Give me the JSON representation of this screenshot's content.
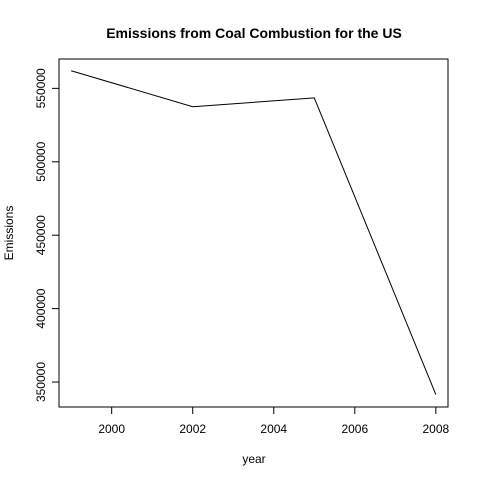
{
  "chart_data": {
    "type": "line",
    "title": "Emissions from Coal Combustion for the US",
    "xlabel": "year",
    "ylabel": "Emissions",
    "x": [
      1999,
      2002,
      2005,
      2008
    ],
    "series": [
      {
        "values": [
          562000,
          537500,
          543500,
          341500
        ]
      }
    ],
    "xlim": [
      1998.7,
      2008.3
    ],
    "ylim": [
      333000,
      570000
    ],
    "xticks": [
      2000,
      2002,
      2004,
      2006,
      2008
    ],
    "yticks": [
      350000,
      400000,
      450000,
      500000,
      550000
    ],
    "xtick_labels": [
      "2000",
      "2002",
      "2004",
      "2006",
      "2008"
    ],
    "ytick_labels": [
      "350000",
      "400000",
      "450000",
      "500000",
      "550000"
    ],
    "grid": false,
    "line_color": "#000000"
  }
}
